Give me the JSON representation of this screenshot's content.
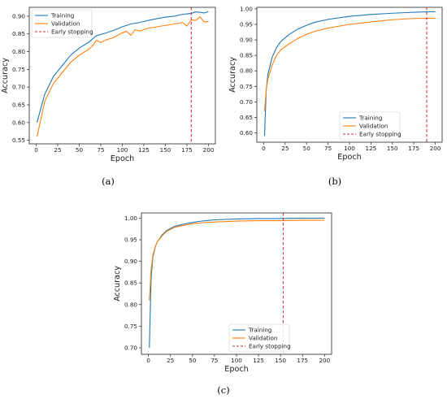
{
  "colors": {
    "training": "#1f77b4",
    "validation": "#ff7f0e",
    "early_stopping": "#d62728"
  },
  "chart_data": [
    {
      "panel": "(a)",
      "type": "line",
      "xlabel": "Epoch",
      "ylabel": "Accuracy",
      "xlim": [
        -8,
        208
      ],
      "ylim": [
        0.54,
        0.925
      ],
      "xticks": [
        0,
        25,
        50,
        75,
        100,
        125,
        150,
        175,
        200
      ],
      "yticks": [
        0.55,
        0.6,
        0.65,
        0.7,
        0.75,
        0.8,
        0.85,
        0.9
      ],
      "legend": {
        "position": "top-left",
        "entries": [
          "Training",
          "Validation",
          "Early stopping"
        ]
      },
      "early_stopping_epoch": 180,
      "series": [
        {
          "name": "Training",
          "x": [
            1,
            10,
            20,
            30,
            40,
            50,
            60,
            70,
            80,
            90,
            100,
            110,
            120,
            130,
            140,
            150,
            160,
            170,
            180,
            185,
            190,
            195,
            200
          ],
          "y": [
            0.6,
            0.68,
            0.73,
            0.76,
            0.79,
            0.81,
            0.825,
            0.845,
            0.852,
            0.86,
            0.87,
            0.878,
            0.882,
            0.888,
            0.893,
            0.897,
            0.9,
            0.905,
            0.908,
            0.912,
            0.911,
            0.909,
            0.913
          ]
        },
        {
          "name": "Validation",
          "x": [
            1,
            10,
            20,
            30,
            40,
            50,
            60,
            65,
            70,
            75,
            80,
            90,
            100,
            105,
            110,
            115,
            120,
            130,
            140,
            150,
            160,
            170,
            175,
            180,
            185,
            190,
            195,
            200
          ],
          "y": [
            0.56,
            0.66,
            0.71,
            0.74,
            0.77,
            0.79,
            0.805,
            0.815,
            0.832,
            0.826,
            0.832,
            0.84,
            0.853,
            0.857,
            0.846,
            0.862,
            0.858,
            0.866,
            0.87,
            0.874,
            0.878,
            0.882,
            0.872,
            0.89,
            0.888,
            0.898,
            0.884,
            0.885
          ]
        }
      ]
    },
    {
      "panel": "(b)",
      "type": "line",
      "xlabel": "Epoch",
      "ylabel": "Accuracy",
      "xlim": [
        -8,
        208
      ],
      "ylim": [
        0.57,
        1.005
      ],
      "xticks": [
        0,
        25,
        50,
        75,
        100,
        125,
        150,
        175,
        200
      ],
      "yticks": [
        0.6,
        0.65,
        0.7,
        0.75,
        0.8,
        0.85,
        0.9,
        0.95,
        1.0
      ],
      "legend": {
        "position": "bottom-right",
        "entries": [
          "Training",
          "Validation",
          "Early stopping"
        ]
      },
      "early_stopping_epoch": 190,
      "series": [
        {
          "name": "Training",
          "x": [
            1,
            3,
            5,
            10,
            15,
            20,
            30,
            40,
            50,
            60,
            75,
            100,
            125,
            150,
            175,
            200
          ],
          "y": [
            0.59,
            0.74,
            0.79,
            0.845,
            0.875,
            0.895,
            0.918,
            0.935,
            0.947,
            0.957,
            0.966,
            0.976,
            0.982,
            0.986,
            0.989,
            0.991
          ]
        },
        {
          "name": "Validation",
          "x": [
            1,
            3,
            5,
            10,
            15,
            20,
            30,
            40,
            50,
            60,
            75,
            100,
            125,
            150,
            175,
            200
          ],
          "y": [
            0.67,
            0.74,
            0.775,
            0.82,
            0.85,
            0.868,
            0.888,
            0.905,
            0.918,
            0.928,
            0.938,
            0.95,
            0.958,
            0.965,
            0.969,
            0.97
          ]
        }
      ]
    },
    {
      "panel": "(c)",
      "type": "line",
      "xlabel": "Epoch",
      "ylabel": "Accuracy",
      "xlim": [
        -8,
        208
      ],
      "ylim": [
        0.685,
        1.012
      ],
      "xticks": [
        0,
        25,
        50,
        75,
        100,
        125,
        150,
        175,
        200
      ],
      "yticks": [
        0.7,
        0.75,
        0.8,
        0.85,
        0.9,
        0.95,
        1.0
      ],
      "legend": {
        "position": "bottom-right",
        "entries": [
          "Training",
          "Validation",
          "Early stopping"
        ]
      },
      "early_stopping_epoch": 153,
      "series": [
        {
          "name": "Training",
          "x": [
            1,
            3,
            5,
            8,
            10,
            15,
            20,
            25,
            30,
            40,
            50,
            60,
            75,
            100,
            125,
            150,
            175,
            200
          ],
          "y": [
            0.7,
            0.86,
            0.91,
            0.935,
            0.945,
            0.96,
            0.97,
            0.976,
            0.981,
            0.986,
            0.99,
            0.993,
            0.996,
            0.998,
            0.999,
            0.999,
            1.0,
            1.0
          ]
        },
        {
          "name": "Validation",
          "x": [
            1,
            3,
            5,
            8,
            10,
            15,
            20,
            25,
            30,
            40,
            50,
            60,
            75,
            100,
            125,
            150,
            175,
            200
          ],
          "y": [
            0.81,
            0.88,
            0.915,
            0.935,
            0.945,
            0.958,
            0.968,
            0.974,
            0.979,
            0.983,
            0.987,
            0.989,
            0.991,
            0.993,
            0.994,
            0.994,
            0.995,
            0.995
          ]
        }
      ]
    }
  ],
  "captions": {
    "a": "(a)",
    "b": "(b)",
    "c": "(c)"
  }
}
